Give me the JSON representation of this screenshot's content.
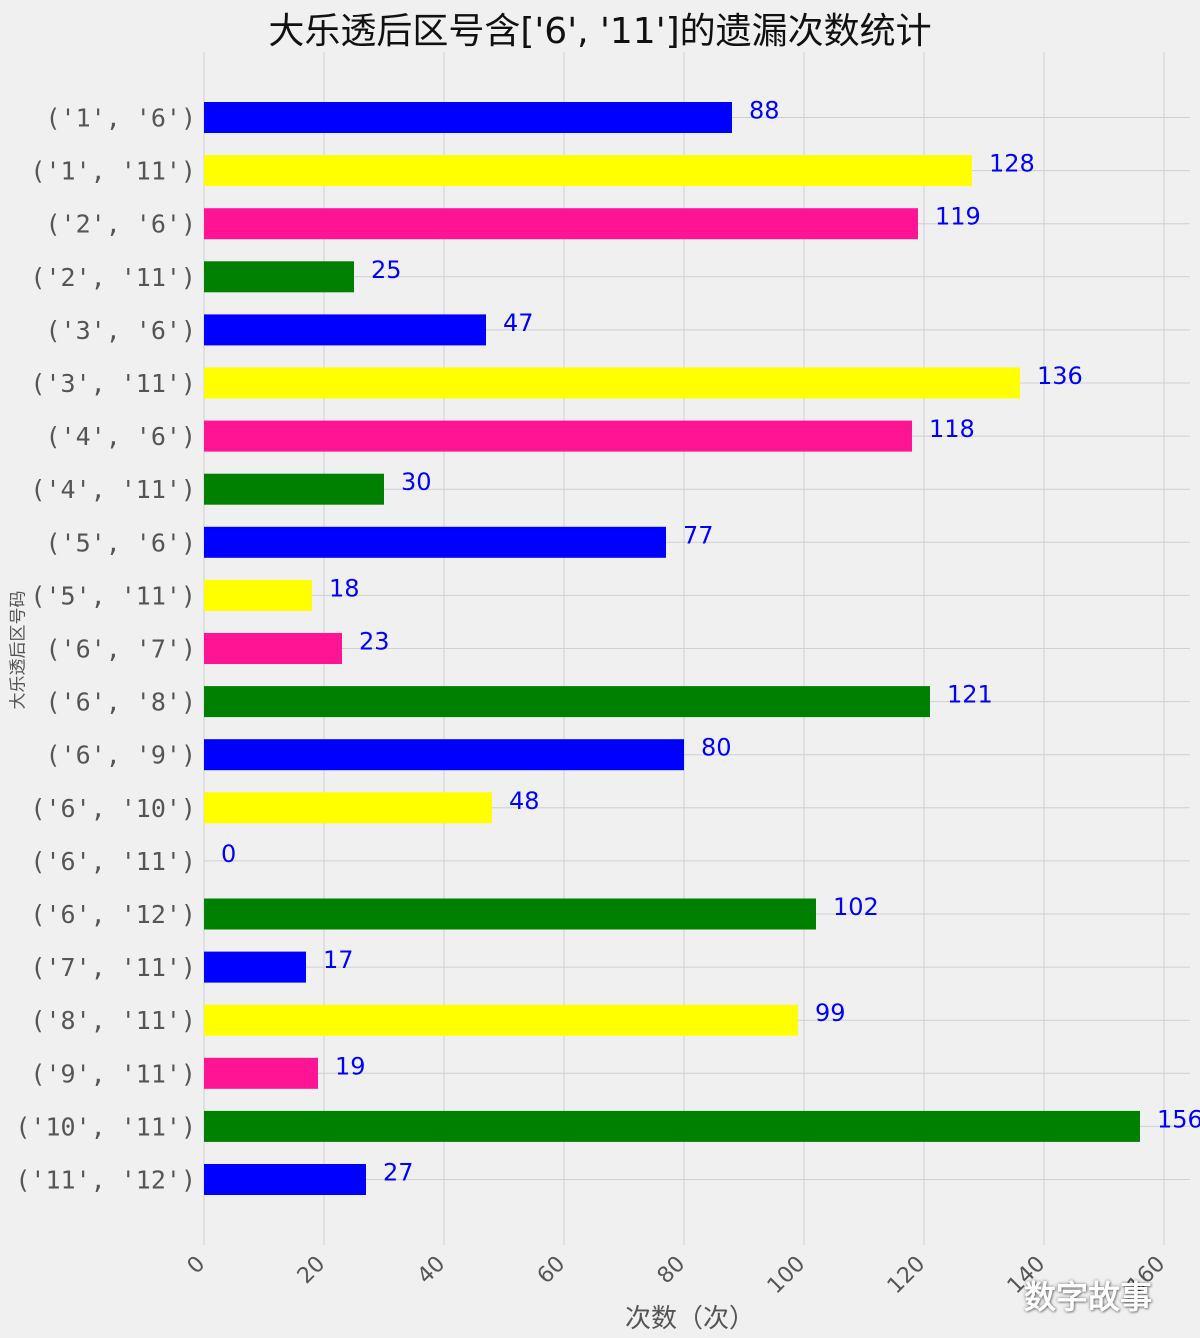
{
  "chart_data": {
    "type": "bar",
    "orientation": "horizontal",
    "title": "大乐透后区号含['6', '11']的遗漏次数统计",
    "xlabel": "次数（次）",
    "ylabel": "大乐透后区号码",
    "categories": [
      "('1', '6')",
      "('1', '11')",
      "('2', '6')",
      "('2', '11')",
      "('3', '6')",
      "('3', '11')",
      "('4', '6')",
      "('4', '11')",
      "('5', '6')",
      "('5', '11')",
      "('6', '7')",
      "('6', '8')",
      "('6', '9')",
      "('6', '10')",
      "('6', '11')",
      "('6', '12')",
      "('7', '11')",
      "('8', '11')",
      "('9', '11')",
      "('10', '11')",
      "('11', '12')"
    ],
    "values": [
      88,
      128,
      119,
      25,
      47,
      136,
      118,
      30,
      77,
      18,
      23,
      121,
      80,
      48,
      0,
      102,
      17,
      99,
      19,
      156,
      27
    ],
    "bar_colors": [
      "#0000ff",
      "#ffff00",
      "#ff1493",
      "#008000"
    ],
    "label_color": "#0000ff",
    "xlim": [
      0,
      160
    ],
    "xticks": [
      "0",
      "20",
      "40",
      "60",
      "80",
      "100",
      "120",
      "140",
      "160"
    ],
    "grid": true
  },
  "watermark": "数字故事"
}
